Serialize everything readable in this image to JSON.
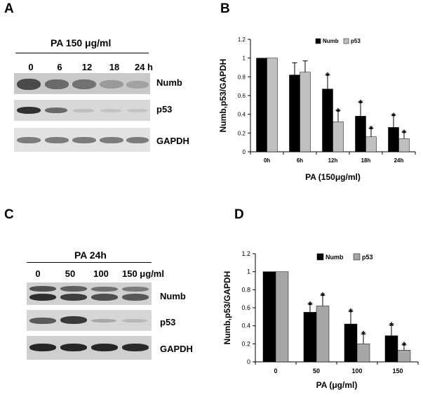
{
  "panels": {
    "A": {
      "letter": "A",
      "title": "PA 150 μg/ml",
      "lanes": [
        "0",
        "6",
        "12",
        "18",
        "24 h"
      ],
      "blots": [
        "Numb",
        "p53",
        "GAPDH"
      ]
    },
    "C": {
      "letter": "C",
      "title": "PA 24h",
      "lanes": [
        "0",
        "50",
        "100",
        "150 μg/ml"
      ],
      "blots": [
        "Numb",
        "p53",
        "GAPDH"
      ]
    },
    "B": {
      "letter": "B"
    },
    "D": {
      "letter": "D"
    }
  },
  "chart_data": [
    {
      "id": "B",
      "type": "bar",
      "categories": [
        "0h",
        "6h",
        "12h",
        "18h",
        "24h"
      ],
      "series": [
        {
          "name": "Numb",
          "values": [
            1.0,
            0.82,
            0.67,
            0.38,
            0.26
          ],
          "errors": [
            0.0,
            0.13,
            0.15,
            0.15,
            0.13
          ],
          "significant": [
            false,
            false,
            true,
            true,
            true
          ],
          "color": "#000000"
        },
        {
          "name": "p53",
          "values": [
            1.0,
            0.85,
            0.32,
            0.16,
            0.14
          ],
          "errors": [
            0.0,
            0.12,
            0.12,
            0.09,
            0.07
          ],
          "significant": [
            false,
            false,
            true,
            true,
            true
          ],
          "color": "#c0c0c0"
        }
      ],
      "xlabel": "PA (150μg/ml)",
      "ylabel": "Numb,p53/GAPDH",
      "ylim": [
        0,
        1.2
      ],
      "yticks": [
        "0",
        "0.2",
        "0.4",
        "0.6",
        "0.8",
        "1",
        "1.2"
      ],
      "sig_marker": "*",
      "legend_position": "top"
    },
    {
      "id": "D",
      "type": "bar",
      "categories": [
        "0",
        "50",
        "100",
        "150"
      ],
      "series": [
        {
          "name": "Numb",
          "values": [
            1.0,
            0.55,
            0.42,
            0.29
          ],
          "errors": [
            0.0,
            0.09,
            0.14,
            0.12
          ],
          "significant": [
            false,
            true,
            true,
            true
          ],
          "color": "#000000"
        },
        {
          "name": "p53",
          "values": [
            1.0,
            0.62,
            0.2,
            0.13
          ],
          "errors": [
            0.0,
            0.12,
            0.11,
            0.06
          ],
          "significant": [
            false,
            true,
            true,
            true
          ],
          "color": "#a6a6a6"
        }
      ],
      "xlabel": "PA (μg/ml)",
      "ylabel": "Numb,p53/GAPDH",
      "ylim": [
        0,
        1.2
      ],
      "yticks": [
        "0",
        "0.2",
        "0.4",
        "0.6",
        "0.8",
        "1",
        "1.2"
      ],
      "sig_marker": "*",
      "legend_position": "top-right"
    }
  ]
}
